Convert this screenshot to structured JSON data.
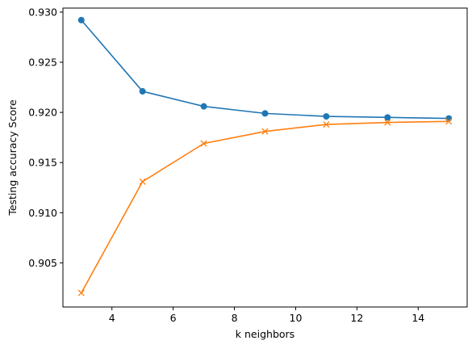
{
  "chart_data": {
    "type": "line",
    "title": "",
    "xlabel": "k neighbors",
    "ylabel": "Testing accuracy Score",
    "xlim": [
      2.4,
      15.6
    ],
    "ylim": [
      0.9006,
      0.9304
    ],
    "xticks": [
      4,
      6,
      8,
      10,
      12,
      14
    ],
    "yticks": [
      0.905,
      0.91,
      0.915,
      0.92,
      0.925,
      0.93
    ],
    "ytick_labels": [
      "0.905",
      "0.910",
      "0.915",
      "0.920",
      "0.925",
      "0.930"
    ],
    "grid": false,
    "legend": "none",
    "series": [
      {
        "color": "#1f77b4",
        "marker": "circle",
        "x": [
          3,
          5,
          7,
          9,
          11,
          13,
          15
        ],
        "y": [
          0.9292,
          0.9221,
          0.9206,
          0.9199,
          0.9196,
          0.9195,
          0.9194
        ]
      },
      {
        "color": "#ff7f0e",
        "marker": "x",
        "x": [
          3,
          5,
          7,
          9,
          11,
          13,
          15
        ],
        "y": [
          0.902,
          0.9131,
          0.9169,
          0.9181,
          0.9188,
          0.919,
          0.9191
        ]
      }
    ]
  }
}
